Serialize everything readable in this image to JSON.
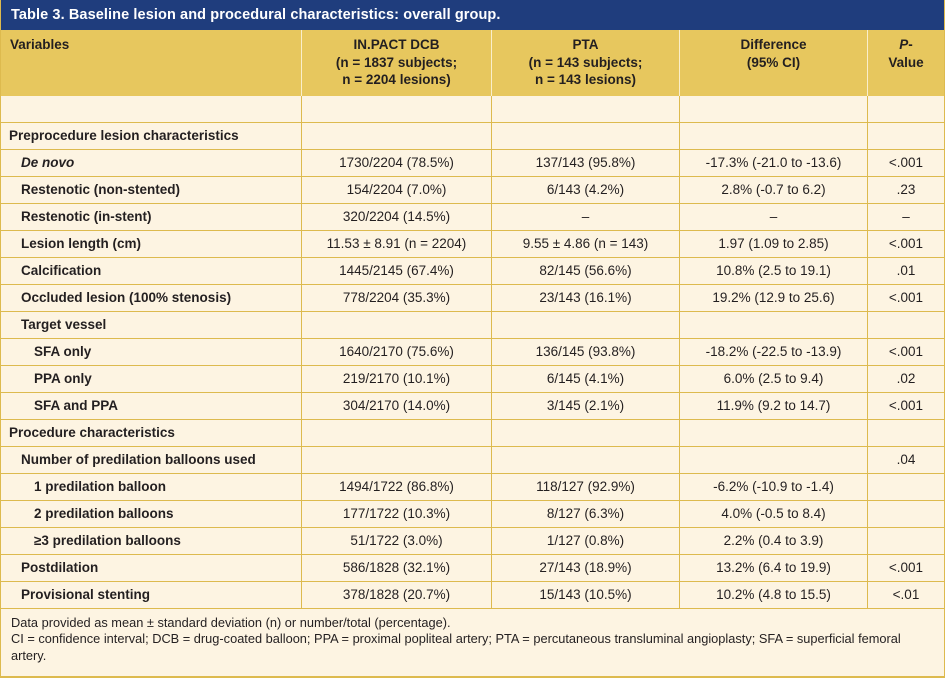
{
  "title": "Table 3. Baseline lesion and procedural characteristics: overall group.",
  "colors": {
    "title_bar": "#1f3d7d",
    "header_background": "#e7c75e",
    "body_background": "#fdf4e2",
    "grid_border": "#ddba4e",
    "text": "#231f20",
    "title_text": "#ffffff"
  },
  "table": {
    "columns": [
      "Variables",
      "IN.PACT DCB\n(n = 1837 subjects;\nn = 2204 lesions)",
      "PTA\n(n = 143 subjects;\nn = 143 lesions)",
      "Difference\n(95% CI)",
      "P-\nValue"
    ],
    "rows": [
      {
        "kind": "empty",
        "label": "",
        "values": [
          "",
          "",
          "",
          ""
        ]
      },
      {
        "kind": "section",
        "label": "Preprocedure lesion characteristics",
        "values": [
          "",
          "",
          "",
          ""
        ]
      },
      {
        "kind": "item",
        "italic": true,
        "label": "De novo",
        "values": [
          "1730/2204 (78.5%)",
          "137/143 (95.8%)",
          "-17.3% (-21.0 to -13.6)",
          "<.001"
        ]
      },
      {
        "kind": "item",
        "label": "Restenotic (non-stented)",
        "values": [
          "154/2204 (7.0%)",
          "6/143 (4.2%)",
          "2.8% (-0.7 to 6.2)",
          ".23"
        ]
      },
      {
        "kind": "item",
        "label": "Restenotic (in-stent)",
        "values": [
          "320/2204 (14.5%)",
          "–",
          "–",
          "–"
        ]
      },
      {
        "kind": "item",
        "label": "Lesion length (cm)",
        "values": [
          "11.53 ± 8.91 (n = 2204)",
          "9.55 ± 4.86 (n = 143)",
          "1.97 (1.09 to 2.85)",
          "<.001"
        ]
      },
      {
        "kind": "item",
        "label": "Calcification",
        "values": [
          "1445/2145 (67.4%)",
          "82/145 (56.6%)",
          "10.8% (2.5 to 19.1)",
          ".01"
        ]
      },
      {
        "kind": "item",
        "label": "Occluded lesion (100% stenosis)",
        "values": [
          "778/2204 (35.3%)",
          "23/143 (16.1%)",
          "19.2% (12.9 to 25.6)",
          "<.001"
        ]
      },
      {
        "kind": "item",
        "label": "Target vessel",
        "values": [
          "",
          "",
          "",
          ""
        ]
      },
      {
        "kind": "sub",
        "label": "SFA only",
        "values": [
          "1640/2170 (75.6%)",
          "136/145 (93.8%)",
          "-18.2% (-22.5 to -13.9)",
          "<.001"
        ]
      },
      {
        "kind": "sub",
        "label": "PPA only",
        "values": [
          "219/2170 (10.1%)",
          "6/145 (4.1%)",
          "6.0% (2.5 to 9.4)",
          ".02"
        ]
      },
      {
        "kind": "sub",
        "label": "SFA and PPA",
        "values": [
          "304/2170 (14.0%)",
          "3/145 (2.1%)",
          "11.9% (9.2 to 14.7)",
          "<.001"
        ]
      },
      {
        "kind": "section",
        "label": "Procedure characteristics",
        "values": [
          "",
          "",
          "",
          ""
        ]
      },
      {
        "kind": "item",
        "label": "Number of predilation balloons used",
        "values": [
          "",
          "",
          "",
          ".04"
        ]
      },
      {
        "kind": "sub",
        "label": "1 predilation balloon",
        "values": [
          "1494/1722 (86.8%)",
          "118/127 (92.9%)",
          "-6.2% (-10.9 to -1.4)",
          ""
        ]
      },
      {
        "kind": "sub",
        "label": "2 predilation balloons",
        "values": [
          "177/1722 (10.3%)",
          "8/127 (6.3%)",
          "4.0% (-0.5 to 8.4)",
          ""
        ]
      },
      {
        "kind": "sub",
        "label": "≥3 predilation balloons",
        "values": [
          "51/1722 (3.0%)",
          "1/127 (0.8%)",
          "2.2% (0.4 to 3.9)",
          ""
        ]
      },
      {
        "kind": "item",
        "label": "Postdilation",
        "values": [
          "586/1828 (32.1%)",
          "27/143 (18.9%)",
          "13.2% (6.4 to 19.9)",
          "<.001"
        ]
      },
      {
        "kind": "item",
        "label": "Provisional stenting",
        "values": [
          "378/1828 (20.7%)",
          "15/143 (10.5%)",
          "10.2% (4.8 to 15.5)",
          "<.01"
        ]
      }
    ]
  },
  "footnotes": [
    "Data provided as mean ± standard deviation (n) or number/total (percentage).",
    "CI = confidence interval; DCB = drug-coated balloon; PPA = proximal popliteal artery; PTA = percutaneous transluminal angioplasty; SFA = superficial femoral artery."
  ]
}
